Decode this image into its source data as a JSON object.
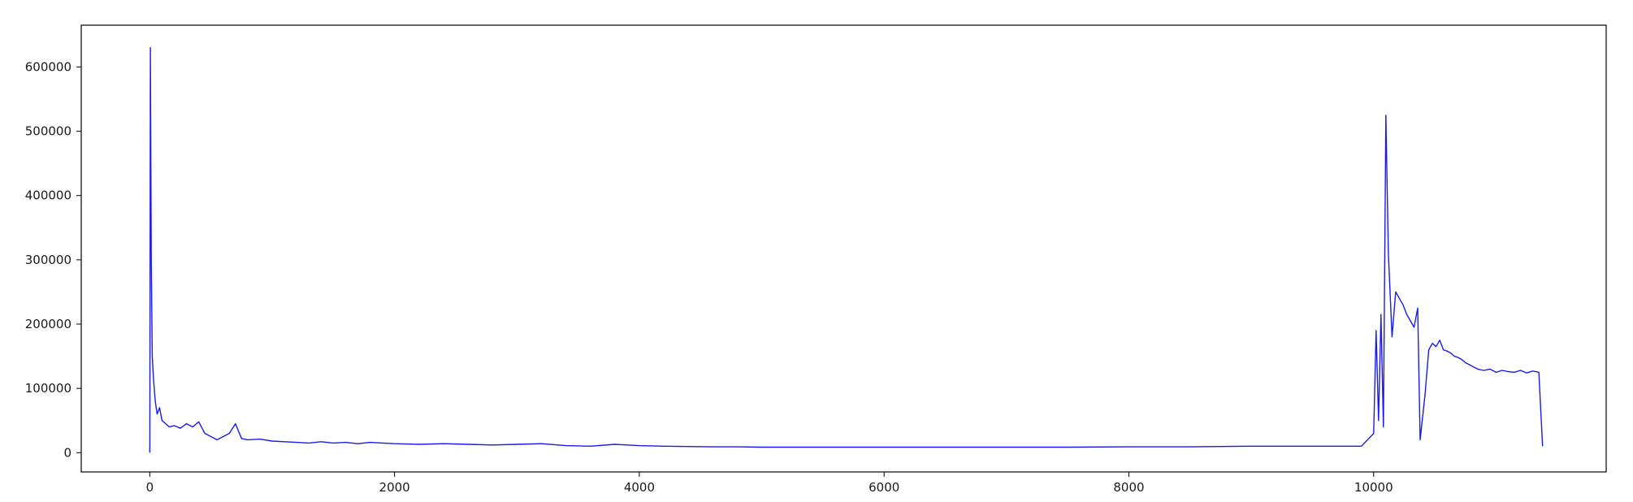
{
  "chart_data": {
    "type": "line",
    "title": "",
    "xlabel": "",
    "ylabel": "",
    "xlim": [
      -560,
      11900
    ],
    "ylim": [
      -30000,
      665000
    ],
    "x_ticks": [
      0,
      2000,
      4000,
      6000,
      8000,
      10000
    ],
    "x_tick_labels": [
      "0",
      "2000",
      "4000",
      "6000",
      "8000",
      "10000"
    ],
    "y_ticks": [
      0,
      100000,
      200000,
      300000,
      400000,
      500000,
      600000
    ],
    "y_tick_labels": [
      "0",
      "100000",
      "200000",
      "300000",
      "400000",
      "500000",
      "600000"
    ],
    "grid": false,
    "colors": {
      "line": "#1a1aee",
      "axes": "#000000",
      "text": "#1a1a1a"
    },
    "series": [
      {
        "x": [
          0,
          5,
          12,
          20,
          30,
          45,
          60,
          80,
          100,
          130,
          160,
          200,
          250,
          300,
          350,
          400,
          450,
          500,
          550,
          600,
          650,
          700,
          750,
          800,
          900,
          1000,
          1100,
          1200,
          1300,
          1400,
          1500,
          1600,
          1700,
          1800,
          1900,
          2000,
          2200,
          2400,
          2600,
          2800,
          3000,
          3200,
          3400,
          3600,
          3800,
          4000,
          4200,
          4400,
          4600,
          4800,
          5000,
          5500,
          6000,
          6500,
          7000,
          7500,
          8000,
          8500,
          9000,
          9500,
          9900,
          10000,
          10020,
          10040,
          10060,
          10080,
          10100,
          10120,
          10150,
          10180,
          10210,
          10240,
          10270,
          10300,
          10330,
          10360,
          10380,
          10420,
          10450,
          10480,
          10510,
          10540,
          10570,
          10600,
          10630,
          10660,
          10690,
          10720,
          10750,
          10800,
          10850,
          10900,
          10950,
          11000,
          11050,
          11100,
          11150,
          11200,
          11250,
          11300,
          11350,
          11380
        ],
        "y": [
          0,
          630000,
          300000,
          150000,
          115000,
          80000,
          60000,
          70000,
          50000,
          45000,
          40000,
          42000,
          38000,
          45000,
          40000,
          48000,
          30000,
          25000,
          20000,
          25000,
          30000,
          45000,
          22000,
          20000,
          21000,
          18000,
          17000,
          16000,
          15000,
          17000,
          15000,
          16000,
          14000,
          16000,
          15000,
          14000,
          13000,
          14000,
          13000,
          12000,
          13000,
          14000,
          11000,
          10000,
          13000,
          11000,
          10000,
          9500,
          9000,
          9000,
          8500,
          8500,
          8500,
          8500,
          8500,
          8500,
          9000,
          9000,
          10000,
          10000,
          10000,
          30000,
          190000,
          50000,
          215000,
          40000,
          525000,
          310000,
          180000,
          250000,
          240000,
          230000,
          215000,
          205000,
          195000,
          225000,
          20000,
          90000,
          160000,
          170000,
          165000,
          175000,
          160000,
          158000,
          155000,
          150000,
          148000,
          145000,
          140000,
          135000,
          130000,
          128000,
          130000,
          125000,
          128000,
          126000,
          125000,
          128000,
          124000,
          127000,
          125000,
          10000
        ]
      }
    ]
  }
}
